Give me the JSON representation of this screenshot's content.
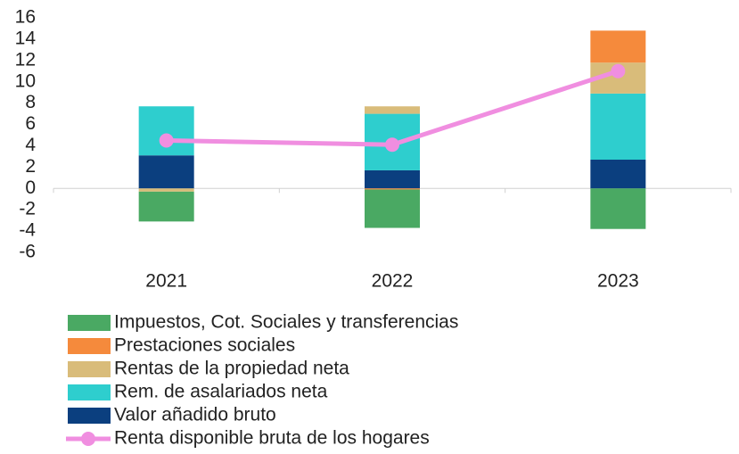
{
  "chart_data": {
    "type": "bar",
    "categories": [
      "2021",
      "2022",
      "2023"
    ],
    "series": [
      {
        "name": "Impuestos, Cot. Sociales y transferencias",
        "color": "#4aa963",
        "values": [
          -2.8,
          -3.6,
          -3.8
        ]
      },
      {
        "name": "Prestaciones sociales",
        "color": "#f58a3c",
        "values": [
          0,
          -0.1,
          3.0
        ]
      },
      {
        "name": "Rentas de la propiedad neta",
        "color": "#d9bc7a",
        "values": [
          -0.3,
          0.7,
          2.9
        ]
      },
      {
        "name": "Rem. de asalariados neta",
        "color": "#2ecece",
        "values": [
          4.6,
          5.3,
          6.2
        ]
      },
      {
        "name": "Valor añadido bruto",
        "color": "#0b3f7f",
        "values": [
          3.1,
          1.7,
          2.7
        ]
      },
      {
        "name": "Renta disponible bruta de los hogares",
        "color": "#f08ee0",
        "type": "line",
        "values": [
          4.5,
          4.1,
          11.0
        ]
      }
    ],
    "ylim": [
      -6,
      16
    ],
    "yticks": [
      -6,
      -4,
      -2,
      0,
      2,
      4,
      6,
      8,
      10,
      12,
      14,
      16
    ],
    "stacked": true
  }
}
